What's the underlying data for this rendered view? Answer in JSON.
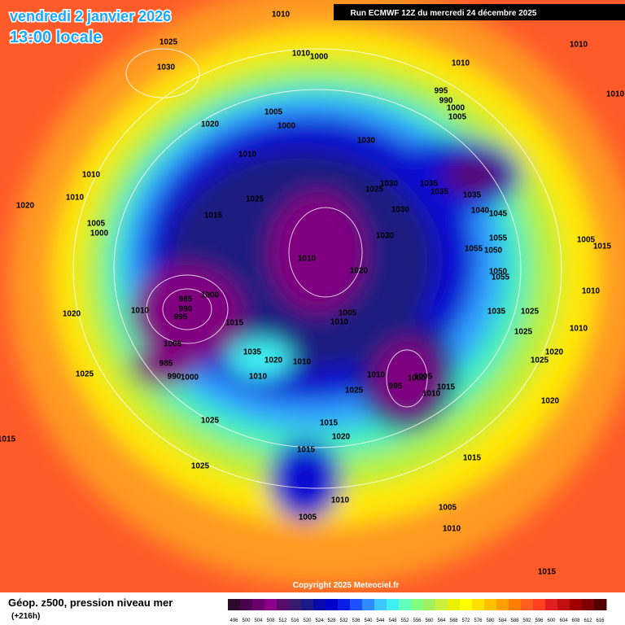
{
  "header": {
    "date": "vendredi 2 janvier 2026",
    "time": "13:00 locale",
    "run": "Run ECMWF 12Z du mercredi 24 décembre 2025"
  },
  "footer": {
    "caption": "Géop. z500, pression niveau mer",
    "lead": "(+216h)",
    "copyright": "Copyright 2025 Meteociel.fr"
  },
  "legend": {
    "values": [
      496,
      500,
      504,
      508,
      512,
      516,
      520,
      524,
      528,
      532,
      536,
      540,
      544,
      548,
      552,
      556,
      560,
      564,
      568,
      572,
      576,
      580,
      584,
      588,
      592,
      596,
      600,
      604,
      608,
      612,
      616
    ],
    "colors": [
      "#2b0a2b",
      "#4b004b",
      "#6a006a",
      "#8a008a",
      "#5a0a6a",
      "#3a1a6e",
      "#1a1a8a",
      "#0a0aaa",
      "#0000cc",
      "#0a1ee6",
      "#1e50ff",
      "#2e8cff",
      "#3cc8ff",
      "#40f0f0",
      "#60ffc0",
      "#80ff80",
      "#a0f060",
      "#c8f03c",
      "#e8f000",
      "#ffff00",
      "#ffe000",
      "#ffc000",
      "#ffa000",
      "#ff8000",
      "#ff6020",
      "#ff4020",
      "#e02020",
      "#c01010",
      "#a00000",
      "#800000",
      "#500000"
    ]
  },
  "isobar_labels": [
    "1010",
    "1025",
    "1030",
    "1010",
    "1000",
    "1005",
    "1000",
    "1020",
    "1010",
    "1010",
    "1020",
    "1005",
    "1000",
    "1015",
    "1025",
    "1010",
    "1030",
    "1030",
    "1025",
    "1030",
    "1030",
    "1010",
    "1020",
    "1005",
    "1010",
    "985",
    "990",
    "995",
    "1000",
    "1010",
    "1015",
    "1005",
    "985",
    "990",
    "1000",
    "1035",
    "1020",
    "1010",
    "1010",
    "1020",
    "1025",
    "1025",
    "1025",
    "1015",
    "1025",
    "1010",
    "995",
    "1000",
    "1005",
    "1010",
    "1015",
    "1015",
    "1020",
    "1015",
    "1015",
    "1010",
    "1005",
    "1005",
    "1010",
    "1015",
    "1020",
    "1020",
    "1025",
    "1025",
    "1025",
    "1035",
    "1010",
    "1010",
    "1005",
    "1015",
    "1055",
    "1055",
    "1050",
    "1050",
    "1055",
    "1040",
    "1045",
    "1035",
    "1035",
    "1035",
    "995",
    "990",
    "1000",
    "1005",
    "1010",
    "1010",
    "1010"
  ]
}
